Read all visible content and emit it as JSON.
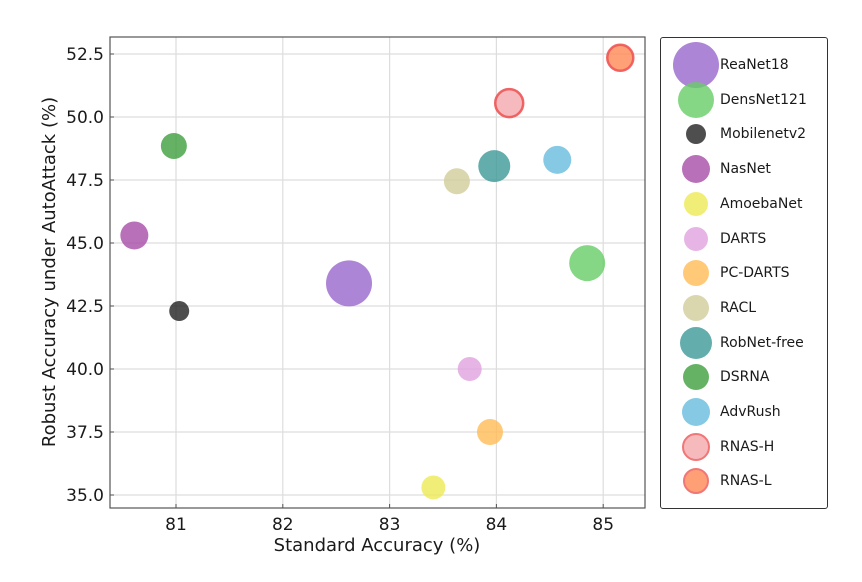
{
  "chart_data": {
    "type": "scatter",
    "title": "",
    "xlabel": "Standard Accuracy (%)",
    "ylabel": "Robust Accuracy under AutoAttack (%)",
    "xlim": [
      80.4,
      85.4
    ],
    "ylim": [
      34.5,
      53.2
    ],
    "xticks": [
      81,
      82,
      83,
      84,
      85
    ],
    "xtick_labels": [
      "81",
      "82",
      "83",
      "84",
      "85"
    ],
    "yticks": [
      35.0,
      37.5,
      40.0,
      42.5,
      45.0,
      47.5,
      50.0,
      52.5
    ],
    "ytick_labels": [
      "35.0",
      "37.5",
      "40.0",
      "42.5",
      "45.0",
      "47.5",
      "50.0",
      "52.5"
    ],
    "grid": true,
    "legend_position": "outside right",
    "series": [
      {
        "name": "ReaNet18",
        "x": 82.62,
        "y": 43.4,
        "size": 23,
        "color": "#9966cc",
        "edge": null
      },
      {
        "name": "DensNet121",
        "x": 84.85,
        "y": 44.2,
        "size": 18,
        "color": "#66cc66",
        "edge": null
      },
      {
        "name": "Mobilenetv2",
        "x": 81.03,
        "y": 42.3,
        "size": 10,
        "color": "#222222",
        "edge": null
      },
      {
        "name": "NasNet",
        "x": 80.61,
        "y": 45.3,
        "size": 14,
        "color": "#a64ca6",
        "edge": null
      },
      {
        "name": "AmoebaNet",
        "x": 83.41,
        "y": 35.3,
        "size": 12,
        "color": "#eeea55",
        "edge": null
      },
      {
        "name": "DARTS",
        "x": 83.75,
        "y": 40.0,
        "size": 12,
        "color": "#e0a3e0",
        "edge": null
      },
      {
        "name": "PC-DARTS",
        "x": 83.94,
        "y": 37.5,
        "size": 13,
        "color": "#ffbb55",
        "edge": null
      },
      {
        "name": "RACL",
        "x": 83.63,
        "y": 47.45,
        "size": 13,
        "color": "#d1cc99",
        "edge": null
      },
      {
        "name": "RobNet-free",
        "x": 83.98,
        "y": 48.05,
        "size": 16,
        "color": "#3d9999",
        "edge": null
      },
      {
        "name": "DSRNA",
        "x": 80.98,
        "y": 48.85,
        "size": 13,
        "color": "#3f9f3f",
        "edge": null
      },
      {
        "name": "AdvRush",
        "x": 84.57,
        "y": 48.3,
        "size": 14,
        "color": "#66bbdd",
        "edge": null
      },
      {
        "name": "RNAS-H",
        "x": 84.12,
        "y": 50.55,
        "size": 14,
        "color": "#f4a8ac",
        "edge": "#ee5555"
      },
      {
        "name": "RNAS-L",
        "x": 85.16,
        "y": 52.35,
        "size": 13,
        "color": "#ff8855",
        "edge": "#ee5555"
      }
    ]
  }
}
